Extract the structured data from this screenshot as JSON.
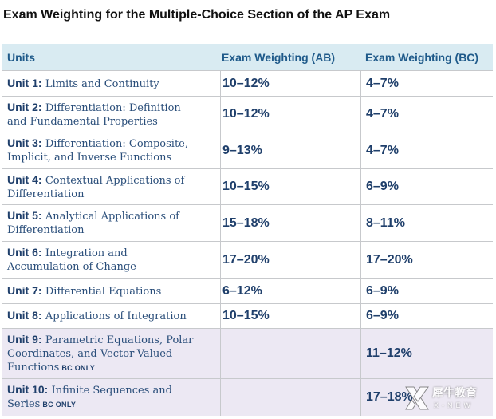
{
  "title": "Exam Weighting for the Multiple-Choice Section of the AP Exam",
  "headers": {
    "units": "Units",
    "ab": "Exam Weighting (AB)",
    "bc": "Exam Weighting (BC)"
  },
  "rows": [
    {
      "unit": "Unit 1:",
      "line1": "Limits and Continuity",
      "line2": "",
      "tag": "",
      "ab": "10–12%",
      "bc": "4–7%"
    },
    {
      "unit": "Unit 2:",
      "line1": "Differentiation: Definition",
      "line2": "and Fundamental Properties",
      "tag": "",
      "ab": "10–12%",
      "bc": "4–7%"
    },
    {
      "unit": "Unit 3:",
      "line1": "Differentiation: Composite,",
      "line2": "Implicit, and Inverse Functions",
      "tag": "",
      "ab": "9–13%",
      "bc": "4–7%"
    },
    {
      "unit": "Unit 4:",
      "line1": "Contextual Applications of",
      "line2": "Differentiation",
      "tag": "",
      "ab": "10–15%",
      "bc": "6–9%"
    },
    {
      "unit": "Unit 5:",
      "line1": "Analytical Applications of",
      "line2": "Differentiation",
      "tag": "",
      "ab": "15–18%",
      "bc": "8–11%"
    },
    {
      "unit": "Unit 6:",
      "line1": "Integration and",
      "line2": "Accumulation of Change",
      "tag": "",
      "ab": "17–20%",
      "bc": "17–20%"
    },
    {
      "unit": "Unit 7:",
      "line1": "Differential Equations",
      "line2": "",
      "tag": "",
      "ab": "6–12%",
      "bc": "6–9%"
    },
    {
      "unit": "Unit 8:",
      "line1": "Applications of Integration",
      "line2": "",
      "tag": "",
      "ab": "10–15%",
      "bc": "6–9%"
    },
    {
      "unit": "Unit 9:",
      "line1": "Parametric Equations, Polar",
      "line2": "Coordinates, and Vector-Valued",
      "line3": "Functions",
      "tag": "BC ONLY",
      "ab": "",
      "bc": "11–12%"
    },
    {
      "unit": "Unit 10:",
      "line1": "Infinite Sequences and",
      "line2": "Series",
      "tag": "BC ONLY",
      "ab": "",
      "bc": "17–18%"
    }
  ],
  "watermark": {
    "cn": "犀牛教育",
    "en": "X-NEW"
  }
}
